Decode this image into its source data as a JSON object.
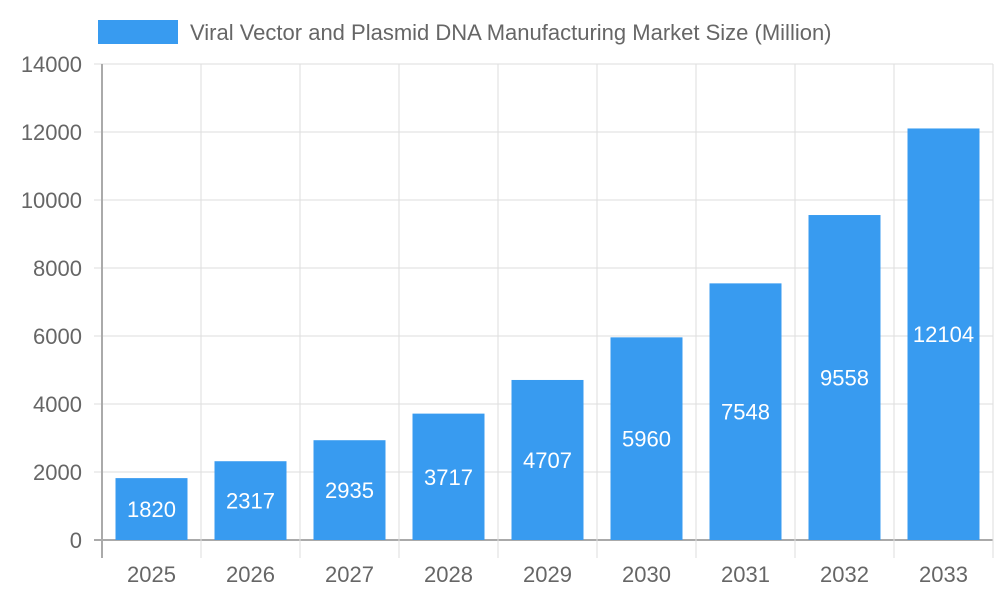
{
  "chart_data": {
    "type": "bar",
    "categories": [
      "2025",
      "2026",
      "2027",
      "2028",
      "2029",
      "2030",
      "2031",
      "2032",
      "2033"
    ],
    "series": [
      {
        "name": "Viral Vector and Plasmid DNA Manufacturing Market Size (Million)",
        "values": [
          1820,
          2317,
          2935,
          3717,
          4707,
          5960,
          7548,
          9558,
          12104
        ]
      }
    ],
    "ylim": [
      0,
      14000
    ],
    "yticks": [
      0,
      2000,
      4000,
      6000,
      8000,
      10000,
      12000,
      14000
    ],
    "grid": true,
    "legend": "top",
    "bar_color": "#389BF0",
    "data_labels": true
  }
}
